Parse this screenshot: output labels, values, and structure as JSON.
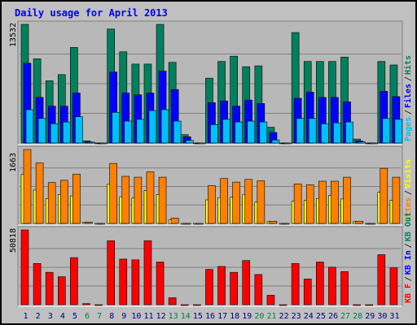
{
  "title": "Daily usage for April 2013",
  "colors": {
    "border_outer": "#000000",
    "bg": "#c0c0c0",
    "panel_bg": "#b4b4b4",
    "title": "#0000ff",
    "hits": "#00805c",
    "files": "#0000ff",
    "pages": "#00c0ff",
    "visits": "#ffff00",
    "sites": "#ff8000",
    "kb_in": "#ff0000",
    "grid": "#808080",
    "weekday_label": "#000080",
    "weekend_label": "#008040"
  },
  "chart_data": [
    {
      "type": "bar",
      "panel": "top",
      "ymax_label": "13532",
      "ylim": [
        0,
        13532
      ],
      "right_labels": [
        "Pages",
        "Files",
        "Hits"
      ],
      "right_label_colors": [
        "pages",
        "files",
        "hits"
      ],
      "categories": [
        "1",
        "2",
        "3",
        "4",
        "5",
        "6",
        "7",
        "8",
        "9",
        "10",
        "11",
        "12",
        "13",
        "14",
        "15",
        "16",
        "17",
        "18",
        "19",
        "20",
        "21",
        "22",
        "23",
        "24",
        "25",
        "26",
        "27",
        "28",
        "29",
        "30",
        "31"
      ],
      "series": [
        {
          "name": "Hits",
          "color_key": "hits",
          "values": [
            13532,
            9600,
            7100,
            7800,
            10900,
            250,
            0,
            13000,
            10400,
            9000,
            9000,
            13532,
            9200,
            950,
            0,
            7400,
            9300,
            9900,
            8700,
            8800,
            1800,
            0,
            12600,
            9300,
            9300,
            9300,
            9800,
            450,
            0,
            9300,
            8900
          ]
        },
        {
          "name": "Files",
          "color_key": "files",
          "values": [
            9100,
            5200,
            4200,
            4200,
            5700,
            130,
            0,
            8100,
            5700,
            5500,
            5700,
            8200,
            6100,
            700,
            0,
            4600,
            4800,
            4200,
            4900,
            4500,
            1200,
            0,
            5100,
            5800,
            5200,
            5200,
            4700,
            230,
            0,
            5900,
            5300
          ]
        },
        {
          "name": "Pages",
          "color_key": "pages",
          "values": [
            3800,
            2800,
            2200,
            2400,
            3000,
            90,
            0,
            3500,
            2500,
            2700,
            3700,
            3800,
            2500,
            300,
            0,
            2100,
            2700,
            2400,
            2500,
            2400,
            350,
            0,
            2800,
            2800,
            2200,
            2300,
            2400,
            120,
            0,
            2800,
            2700
          ]
        }
      ]
    },
    {
      "type": "bar",
      "panel": "middle",
      "ymax_label": "1663",
      "ylim": [
        0,
        1663
      ],
      "right_labels": [
        "Sites",
        "Visits"
      ],
      "right_label_colors": [
        "sites",
        "visits"
      ],
      "categories": [
        "1",
        "2",
        "3",
        "4",
        "5",
        "6",
        "7",
        "8",
        "9",
        "10",
        "11",
        "12",
        "13",
        "14",
        "15",
        "16",
        "17",
        "18",
        "19",
        "20",
        "21",
        "22",
        "23",
        "24",
        "25",
        "26",
        "27",
        "28",
        "29",
        "30",
        "31"
      ],
      "series": [
        {
          "name": "Visits",
          "color_key": "visits",
          "values": [
            1100,
            750,
            560,
            650,
            620,
            25,
            0,
            880,
            600,
            570,
            740,
            650,
            80,
            0,
            0,
            530,
            580,
            590,
            650,
            480,
            40,
            0,
            500,
            520,
            560,
            630,
            550,
            40,
            0,
            700,
            520
          ]
        },
        {
          "name": "Sites",
          "color_key": "sites",
          "values": [
            1663,
            1360,
            920,
            970,
            1110,
            25,
            0,
            1350,
            1060,
            1040,
            1160,
            1040,
            120,
            0,
            0,
            850,
            1010,
            930,
            990,
            960,
            50,
            0,
            890,
            870,
            950,
            950,
            1040,
            50,
            0,
            1240,
            1040
          ]
        }
      ]
    },
    {
      "type": "bar",
      "panel": "bottom",
      "ymax_label": "50818",
      "ylim": [
        0,
        50818
      ],
      "right_labels": [
        "KB F",
        "KB In",
        "KB Out"
      ],
      "right_label_colors": [
        "kb_in",
        "files",
        "hits"
      ],
      "categories": [
        "1",
        "2",
        "3",
        "4",
        "5",
        "6",
        "7",
        "8",
        "9",
        "10",
        "11",
        "12",
        "13",
        "14",
        "15",
        "16",
        "17",
        "18",
        "19",
        "20",
        "21",
        "22",
        "23",
        "24",
        "25",
        "26",
        "27",
        "28",
        "29",
        "30",
        "31"
      ],
      "series": [
        {
          "name": "KB F",
          "color_key": "kb_in",
          "values": [
            50818,
            28000,
            22000,
            19000,
            32000,
            700,
            0,
            43500,
            31000,
            30500,
            43500,
            29000,
            4700,
            0,
            0,
            24000,
            26000,
            22000,
            30000,
            20500,
            6400,
            0,
            28000,
            17500,
            29000,
            25500,
            22500,
            0,
            0,
            34000,
            25000
          ]
        }
      ]
    }
  ],
  "x_labels": [
    {
      "text": "1",
      "weekend": false
    },
    {
      "text": "2",
      "weekend": false
    },
    {
      "text": "3",
      "weekend": false
    },
    {
      "text": "4",
      "weekend": false
    },
    {
      "text": "5",
      "weekend": false
    },
    {
      "text": "6",
      "weekend": true
    },
    {
      "text": "7",
      "weekend": true
    },
    {
      "text": "8",
      "weekend": false
    },
    {
      "text": "9",
      "weekend": false
    },
    {
      "text": "10",
      "weekend": false
    },
    {
      "text": "11",
      "weekend": false
    },
    {
      "text": "12",
      "weekend": false
    },
    {
      "text": "13",
      "weekend": true
    },
    {
      "text": "14",
      "weekend": true
    },
    {
      "text": "15",
      "weekend": false
    },
    {
      "text": "16",
      "weekend": false
    },
    {
      "text": "17",
      "weekend": false
    },
    {
      "text": "18",
      "weekend": false
    },
    {
      "text": "19",
      "weekend": false
    },
    {
      "text": "20",
      "weekend": true
    },
    {
      "text": "21",
      "weekend": true
    },
    {
      "text": "22",
      "weekend": false
    },
    {
      "text": "23",
      "weekend": false
    },
    {
      "text": "24",
      "weekend": false
    },
    {
      "text": "25",
      "weekend": false
    },
    {
      "text": "26",
      "weekend": false
    },
    {
      "text": "27",
      "weekend": true
    },
    {
      "text": "28",
      "weekend": true
    },
    {
      "text": "29",
      "weekend": false
    },
    {
      "text": "30",
      "weekend": false
    },
    {
      "text": "31",
      "weekend": false
    }
  ]
}
